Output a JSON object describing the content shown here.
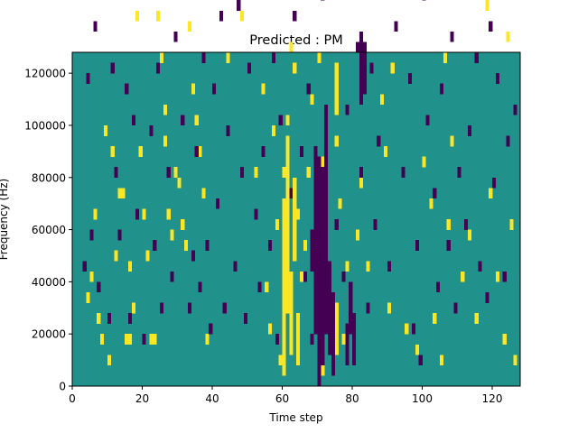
{
  "chart_data": {
    "type": "heatmap",
    "title": "Predicted : PM",
    "xlabel": "Time step",
    "ylabel": "Frequency (Hz)",
    "xlim": [
      0,
      128
    ],
    "ylim": [
      0,
      128000
    ],
    "x_ticks": [
      0,
      20,
      40,
      60,
      80,
      100,
      120
    ],
    "y_ticks": [
      0,
      20000,
      40000,
      60000,
      80000,
      100000,
      120000
    ],
    "x_tick_labels": [
      "0",
      "20",
      "40",
      "60",
      "80",
      "100",
      "120"
    ],
    "y_tick_labels": [
      "0",
      "20000",
      "40000",
      "60000",
      "80000",
      "100000",
      "120000"
    ],
    "colormap": "viridis",
    "colors": {
      "low": "#440154",
      "mid": "#21918c",
      "high": "#fde725"
    },
    "grid": false,
    "background_value": 0,
    "bins": {
      "time": 128,
      "frequency": 64,
      "frequency_bin_hz": 2000
    },
    "cells_high": [
      [
        2,
        84
      ],
      [
        3,
        84
      ],
      [
        4,
        16
      ],
      [
        5,
        20
      ],
      [
        6,
        32
      ],
      [
        7,
        12
      ],
      [
        8,
        8
      ],
      [
        9,
        48
      ],
      [
        10,
        4
      ],
      [
        11,
        44
      ],
      [
        12,
        24
      ],
      [
        13,
        36
      ],
      [
        14,
        36
      ],
      [
        15,
        8
      ],
      [
        16,
        8
      ],
      [
        16,
        22
      ],
      [
        17,
        14
      ],
      [
        18,
        70
      ],
      [
        19,
        44
      ],
      [
        20,
        32
      ],
      [
        21,
        24
      ],
      [
        22,
        8
      ],
      [
        22,
        78
      ],
      [
        23,
        8
      ],
      [
        24,
        70
      ],
      [
        25,
        62
      ],
      [
        26,
        52
      ],
      [
        26,
        46
      ],
      [
        27,
        32
      ],
      [
        28,
        28
      ],
      [
        29,
        40
      ],
      [
        30,
        38
      ],
      [
        31,
        30
      ],
      [
        32,
        26
      ],
      [
        33,
        68
      ],
      [
        34,
        56
      ],
      [
        35,
        50
      ],
      [
        36,
        44
      ],
      [
        37,
        36
      ],
      [
        38,
        8
      ],
      [
        42,
        104
      ],
      [
        44,
        62
      ],
      [
        46,
        86
      ],
      [
        48,
        70
      ],
      [
        50,
        60
      ],
      [
        52,
        40
      ],
      [
        54,
        56
      ],
      [
        55,
        18
      ],
      [
        56,
        10
      ],
      [
        57,
        48
      ],
      [
        58,
        30
      ],
      [
        59,
        4
      ],
      [
        60,
        40
      ],
      [
        61,
        50
      ],
      [
        62,
        64
      ],
      [
        63,
        60
      ],
      [
        64,
        32
      ],
      [
        65,
        20
      ],
      [
        66,
        26
      ],
      [
        67,
        40
      ],
      [
        68,
        54
      ],
      [
        69,
        12
      ],
      [
        70,
        62
      ],
      [
        71,
        22
      ],
      [
        72,
        52
      ],
      [
        73,
        8
      ],
      [
        74,
        14
      ],
      [
        75,
        46
      ],
      [
        76,
        34
      ],
      [
        77,
        8
      ],
      [
        78,
        22
      ],
      [
        79,
        12
      ],
      [
        80,
        88
      ],
      [
        81,
        28
      ],
      [
        82,
        38
      ],
      [
        84,
        22
      ],
      [
        86,
        30
      ],
      [
        88,
        54
      ],
      [
        89,
        44
      ],
      [
        90,
        14
      ],
      [
        91,
        60
      ],
      [
        92,
        106
      ],
      [
        93,
        96
      ],
      [
        95,
        10
      ],
      [
        96,
        90
      ],
      [
        98,
        6
      ],
      [
        100,
        42
      ],
      [
        102,
        34
      ],
      [
        103,
        12
      ],
      [
        105,
        4
      ],
      [
        106,
        62
      ],
      [
        107,
        30
      ],
      [
        108,
        46
      ],
      [
        109,
        84
      ],
      [
        111,
        20
      ],
      [
        113,
        28
      ],
      [
        115,
        12
      ],
      [
        117,
        86
      ],
      [
        118,
        72
      ],
      [
        119,
        36
      ],
      [
        121,
        20
      ],
      [
        123,
        8
      ],
      [
        124,
        66
      ],
      [
        125,
        30
      ],
      [
        126,
        4
      ]
    ],
    "cells_low": [
      [
        1,
        118
      ],
      [
        2,
        102
      ],
      [
        3,
        22
      ],
      [
        4,
        58
      ],
      [
        5,
        28
      ],
      [
        6,
        68
      ],
      [
        7,
        18
      ],
      [
        9,
        92
      ],
      [
        10,
        12
      ],
      [
        11,
        60
      ],
      [
        12,
        40
      ],
      [
        13,
        28
      ],
      [
        15,
        56
      ],
      [
        16,
        12
      ],
      [
        17,
        50
      ],
      [
        18,
        32
      ],
      [
        20,
        8
      ],
      [
        22,
        48
      ],
      [
        23,
        26
      ],
      [
        24,
        60
      ],
      [
        25,
        14
      ],
      [
        27,
        40
      ],
      [
        28,
        20
      ],
      [
        29,
        66
      ],
      [
        31,
        50
      ],
      [
        32,
        82
      ],
      [
        33,
        14
      ],
      [
        34,
        24
      ],
      [
        35,
        44
      ],
      [
        36,
        18
      ],
      [
        37,
        62
      ],
      [
        38,
        26
      ],
      [
        39,
        10
      ],
      [
        40,
        56
      ],
      [
        41,
        34
      ],
      [
        42,
        70
      ],
      [
        43,
        14
      ],
      [
        44,
        48
      ],
      [
        45,
        100
      ],
      [
        46,
        22
      ],
      [
        47,
        72
      ],
      [
        48,
        40
      ],
      [
        49,
        12
      ],
      [
        50,
        60
      ],
      [
        51,
        102
      ],
      [
        52,
        32
      ],
      [
        53,
        18
      ],
      [
        54,
        44
      ],
      [
        55,
        88
      ],
      [
        56,
        26
      ],
      [
        57,
        62
      ],
      [
        58,
        8
      ],
      [
        59,
        50
      ],
      [
        60,
        96
      ],
      [
        61,
        16
      ],
      [
        62,
        36
      ],
      [
        63,
        70
      ],
      [
        64,
        84
      ],
      [
        65,
        44
      ],
      [
        66,
        20
      ],
      [
        67,
        56
      ],
      [
        68,
        8
      ],
      [
        69,
        98
      ],
      [
        70,
        32
      ],
      [
        71,
        74
      ],
      [
        72,
        48
      ],
      [
        74,
        12
      ],
      [
        75,
        30
      ],
      [
        77,
        20
      ],
      [
        78,
        52
      ],
      [
        79,
        86
      ],
      [
        80,
        10
      ],
      [
        81,
        64
      ],
      [
        82,
        40
      ],
      [
        83,
        56
      ],
      [
        84,
        14
      ],
      [
        85,
        60
      ],
      [
        86,
        30
      ],
      [
        87,
        46
      ],
      [
        88,
        100
      ],
      [
        89,
        78
      ],
      [
        90,
        22
      ],
      [
        92,
        68
      ],
      [
        94,
        40
      ],
      [
        95,
        86
      ],
      [
        96,
        58
      ],
      [
        97,
        10
      ],
      [
        98,
        26
      ],
      [
        99,
        4
      ],
      [
        100,
        74
      ],
      [
        101,
        50
      ],
      [
        102,
        104
      ],
      [
        103,
        36
      ],
      [
        104,
        18
      ],
      [
        105,
        56
      ],
      [
        106,
        90
      ],
      [
        107,
        26
      ],
      [
        108,
        66
      ],
      [
        109,
        14
      ],
      [
        110,
        40
      ],
      [
        111,
        120
      ],
      [
        112,
        30
      ],
      [
        113,
        48
      ],
      [
        114,
        94
      ],
      [
        115,
        62
      ],
      [
        116,
        22
      ],
      [
        117,
        108
      ],
      [
        118,
        16
      ],
      [
        119,
        68
      ],
      [
        120,
        38
      ],
      [
        121,
        58
      ],
      [
        122,
        84
      ],
      [
        123,
        20
      ],
      [
        124,
        46
      ],
      [
        125,
        88
      ],
      [
        126,
        52
      ]
    ],
    "bands_high": [
      [
        60,
        2,
        36
      ],
      [
        61,
        14,
        48
      ],
      [
        62,
        6,
        22
      ],
      [
        63,
        24,
        40
      ],
      [
        64,
        4,
        14
      ],
      [
        70,
        6,
        34
      ],
      [
        71,
        2,
        44
      ],
      [
        72,
        10,
        26
      ],
      [
        75,
        6,
        16
      ],
      [
        75,
        52,
        62
      ]
    ],
    "bands_low": [
      [
        68,
        22,
        30
      ],
      [
        69,
        10,
        46
      ],
      [
        70,
        0,
        44
      ],
      [
        71,
        4,
        42
      ],
      [
        72,
        10,
        54
      ],
      [
        73,
        6,
        24
      ],
      [
        74,
        2,
        18
      ],
      [
        78,
        4,
        12
      ],
      [
        79,
        10,
        20
      ],
      [
        80,
        4,
        14
      ],
      [
        82,
        54,
        68
      ],
      [
        83,
        58,
        66
      ]
    ]
  }
}
